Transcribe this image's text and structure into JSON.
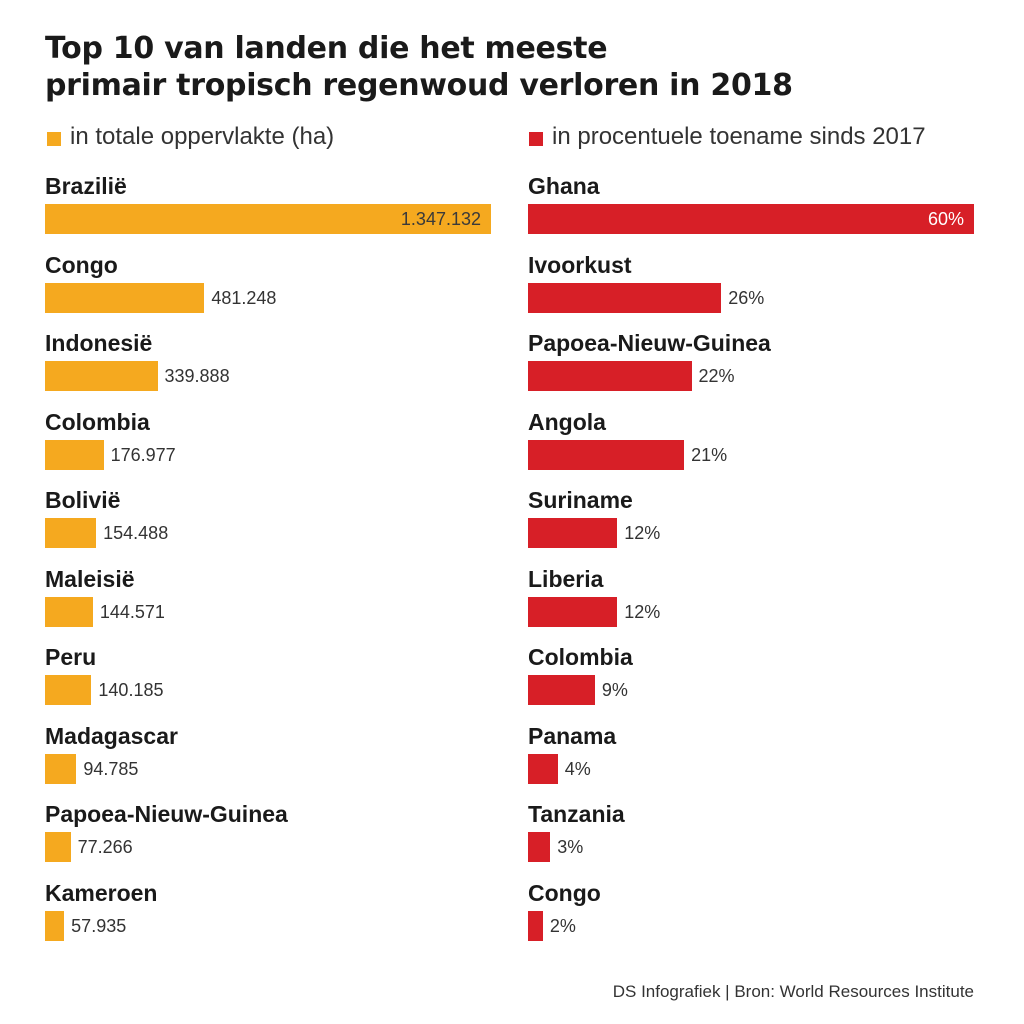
{
  "colors": {
    "area": "#f5a91f",
    "percent": "#d71f27"
  },
  "title_lines": [
    "Top 10 van landen die het meeste",
    "primair tropisch regenwoud verloren in 2018"
  ],
  "legend_left": "in totale oppervlakte (ha)",
  "legend_right": "in procentuele toename sinds 2017",
  "footer": "DS Infografiek | Bron: World Resources Institute",
  "chart_data": [
    {
      "type": "bar",
      "orientation": "horizontal",
      "title": "Top 10 van landen die het meeste primair tropisch regenwoud verloren in 2018",
      "series_label": "in totale oppervlakte (ha)",
      "categories": [
        "Brazilië",
        "Congo",
        "Indonesië",
        "Colombia",
        "Bolivië",
        "Maleisië",
        "Peru",
        "Madagascar",
        "Papoea-Nieuw-Guinea",
        "Kameroen"
      ],
      "values": [
        1347132,
        481248,
        339888,
        176977,
        154488,
        144571,
        140185,
        94785,
        77266,
        57935
      ],
      "value_labels": [
        "1.347.132",
        "481.248",
        "339.888",
        "176.977",
        "154.488",
        "144.571",
        "140.185",
        "94.785",
        "77.266",
        "57.935"
      ],
      "color": "#f5a91f",
      "xlim": [
        0,
        1347132
      ]
    },
    {
      "type": "bar",
      "orientation": "horizontal",
      "series_label": "in procentuele toename sinds 2017",
      "categories": [
        "Ghana",
        "Ivoorkust",
        "Papoea-Nieuw-Guinea",
        "Angola",
        "Suriname",
        "Liberia",
        "Colombia",
        "Panama",
        "Tanzania",
        "Congo"
      ],
      "values": [
        60,
        26,
        22,
        21,
        12,
        12,
        9,
        4,
        3,
        2
      ],
      "value_labels": [
        "60%",
        "26%",
        "22%",
        "21%",
        "12%",
        "12%",
        "9%",
        "4%",
        "3%",
        "2%"
      ],
      "color": "#d71f27",
      "xlim": [
        0,
        60
      ]
    }
  ]
}
